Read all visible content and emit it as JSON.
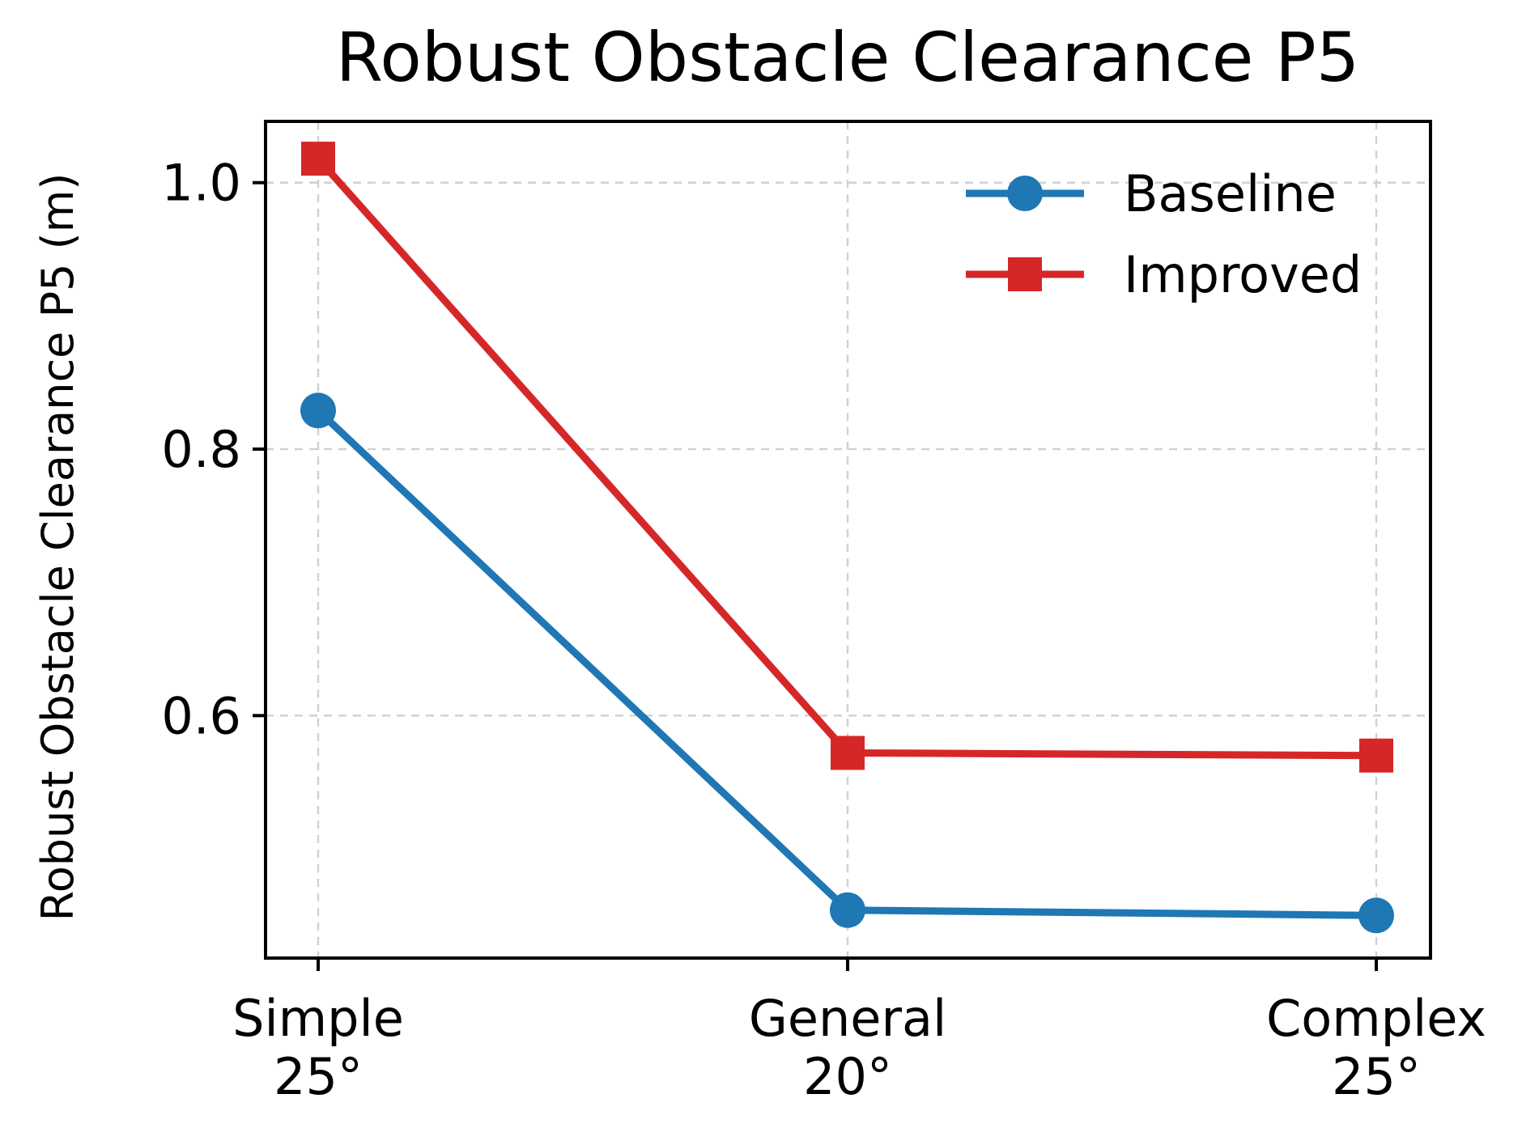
{
  "chart_data": {
    "type": "line",
    "title": "Robust Obstacle Clearance P5",
    "xlabel": "",
    "ylabel": "Robust Obstacle Clearance P5 (m)",
    "categories": [
      [
        "Simple",
        "25°"
      ],
      [
        "General",
        "20°"
      ],
      [
        "Complex",
        "25°"
      ]
    ],
    "ylim": [
      0.418,
      1.046
    ],
    "yticks": [
      0.6,
      0.8,
      1.0
    ],
    "ytick_labels": [
      "0.6",
      "0.8",
      "1.0"
    ],
    "grid": true,
    "legend_position": "top-right",
    "series": [
      {
        "name": "Baseline",
        "values": [
          0.829,
          0.454,
          0.45
        ],
        "color": "#1f77b4",
        "marker": "circle"
      },
      {
        "name": "Improved",
        "values": [
          1.018,
          0.572,
          0.57
        ],
        "color": "#d62728",
        "marker": "square"
      }
    ]
  }
}
